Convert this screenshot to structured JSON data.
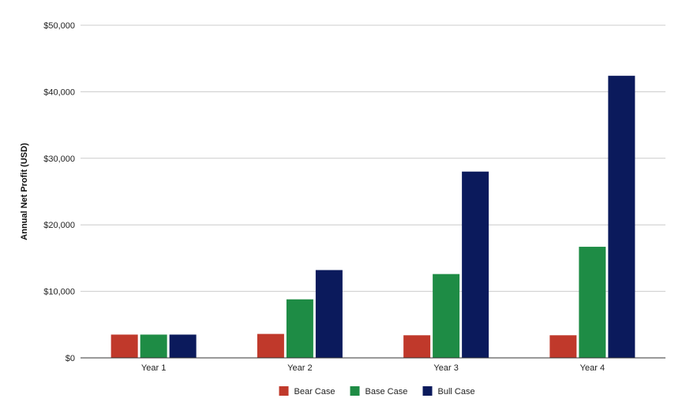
{
  "chart_data": {
    "type": "bar",
    "ylabel": "Annual Net Profit (USD)",
    "xlabel": "",
    "categories": [
      "Year 1",
      "Year 2",
      "Year 3",
      "Year 4"
    ],
    "ylim": [
      0,
      50000
    ],
    "yticks": [
      0,
      10000,
      20000,
      30000,
      40000,
      50000
    ],
    "ytick_labels": [
      "$0",
      "$10,000",
      "$20,000",
      "$30,000",
      "$40,000",
      "$50,000"
    ],
    "grid": true,
    "legend_position": "bottom",
    "series": [
      {
        "name": "Bear Case",
        "color": "#c0392b",
        "values": [
          3500,
          3600,
          3400,
          3400
        ]
      },
      {
        "name": "Base Case",
        "color": "#1e8c45",
        "values": [
          3500,
          8800,
          12600,
          16700
        ]
      },
      {
        "name": "Bull Case",
        "color": "#0b1a5c",
        "values": [
          3500,
          13200,
          28000,
          42400
        ]
      }
    ]
  }
}
